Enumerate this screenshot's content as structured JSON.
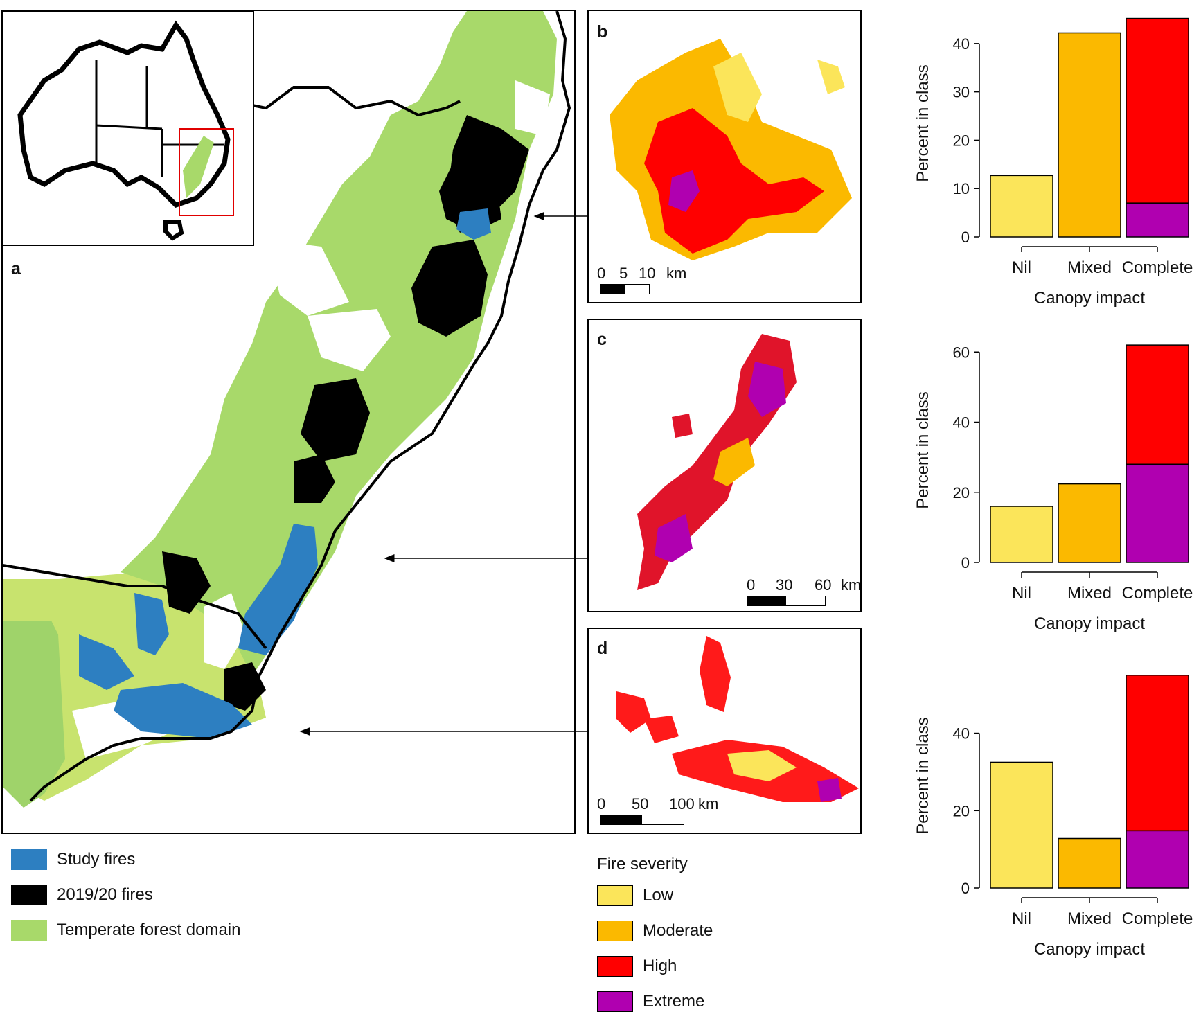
{
  "map": {
    "panel_a_label": "a",
    "panel_b_label": "b",
    "panel_c_label": "c",
    "panel_d_label": "d",
    "scale_b": {
      "labels": [
        "0",
        "5",
        "10"
      ],
      "unit": "km"
    },
    "scale_c": {
      "labels": [
        "0",
        "30",
        "60"
      ],
      "unit": "km"
    },
    "scale_d": {
      "labels": [
        "0",
        "50",
        "100"
      ],
      "unit": "km"
    }
  },
  "map_legend": [
    {
      "label": "Study fires",
      "color": "#2d7fc1"
    },
    {
      "label": "2019/20 fires",
      "color": "#000000"
    },
    {
      "label": "Temperate forest domain",
      "color": "#a8d96a"
    }
  ],
  "severity_legend": {
    "title": "Fire severity",
    "items": [
      {
        "label": "Low",
        "color": "#fbe55a"
      },
      {
        "label": "Moderate",
        "color": "#fbb900"
      },
      {
        "label": "High",
        "color": "#ff0000"
      },
      {
        "label": "Extreme",
        "color": "#b000b0"
      }
    ]
  },
  "chart_data": [
    {
      "type": "bar",
      "panel": "b",
      "categories": [
        "Nil",
        "Mixed",
        "Complete"
      ],
      "series": [
        {
          "name": "Low",
          "values": [
            12.7,
            0,
            0
          ]
        },
        {
          "name": "Moderate",
          "values": [
            0,
            42.2,
            0
          ]
        },
        {
          "name": "Extreme",
          "values": [
            0,
            0,
            7
          ]
        },
        {
          "name": "High",
          "values": [
            0,
            0,
            38.2
          ]
        }
      ],
      "xlabel": "Canopy impact",
      "ylabel": "Percent in class",
      "ylim": [
        0,
        47
      ],
      "yticks": [
        0,
        10,
        20,
        30,
        40
      ]
    },
    {
      "type": "bar",
      "panel": "c",
      "categories": [
        "Nil",
        "Mixed",
        "Complete"
      ],
      "series": [
        {
          "name": "Low",
          "values": [
            16,
            0,
            0
          ]
        },
        {
          "name": "Moderate",
          "values": [
            0,
            22.4,
            0
          ]
        },
        {
          "name": "Extreme",
          "values": [
            0,
            0,
            28
          ]
        },
        {
          "name": "High",
          "values": [
            0,
            0,
            34
          ]
        }
      ],
      "xlabel": "Canopy impact",
      "ylabel": "Percent in class",
      "ylim": [
        0,
        64
      ],
      "yticks": [
        0,
        20,
        40,
        60
      ]
    },
    {
      "type": "bar",
      "panel": "d",
      "categories": [
        "Nil",
        "Mixed",
        "Complete"
      ],
      "series": [
        {
          "name": "Low",
          "values": [
            32.5,
            0,
            0
          ]
        },
        {
          "name": "Moderate",
          "values": [
            0,
            12.8,
            0
          ]
        },
        {
          "name": "Extreme",
          "values": [
            0,
            0,
            14.8
          ]
        },
        {
          "name": "High",
          "values": [
            0,
            0,
            40.2
          ]
        }
      ],
      "xlabel": "Canopy impact",
      "ylabel": "Percent in class",
      "ylim": [
        0,
        58
      ],
      "yticks": [
        0,
        20,
        40
      ]
    }
  ]
}
